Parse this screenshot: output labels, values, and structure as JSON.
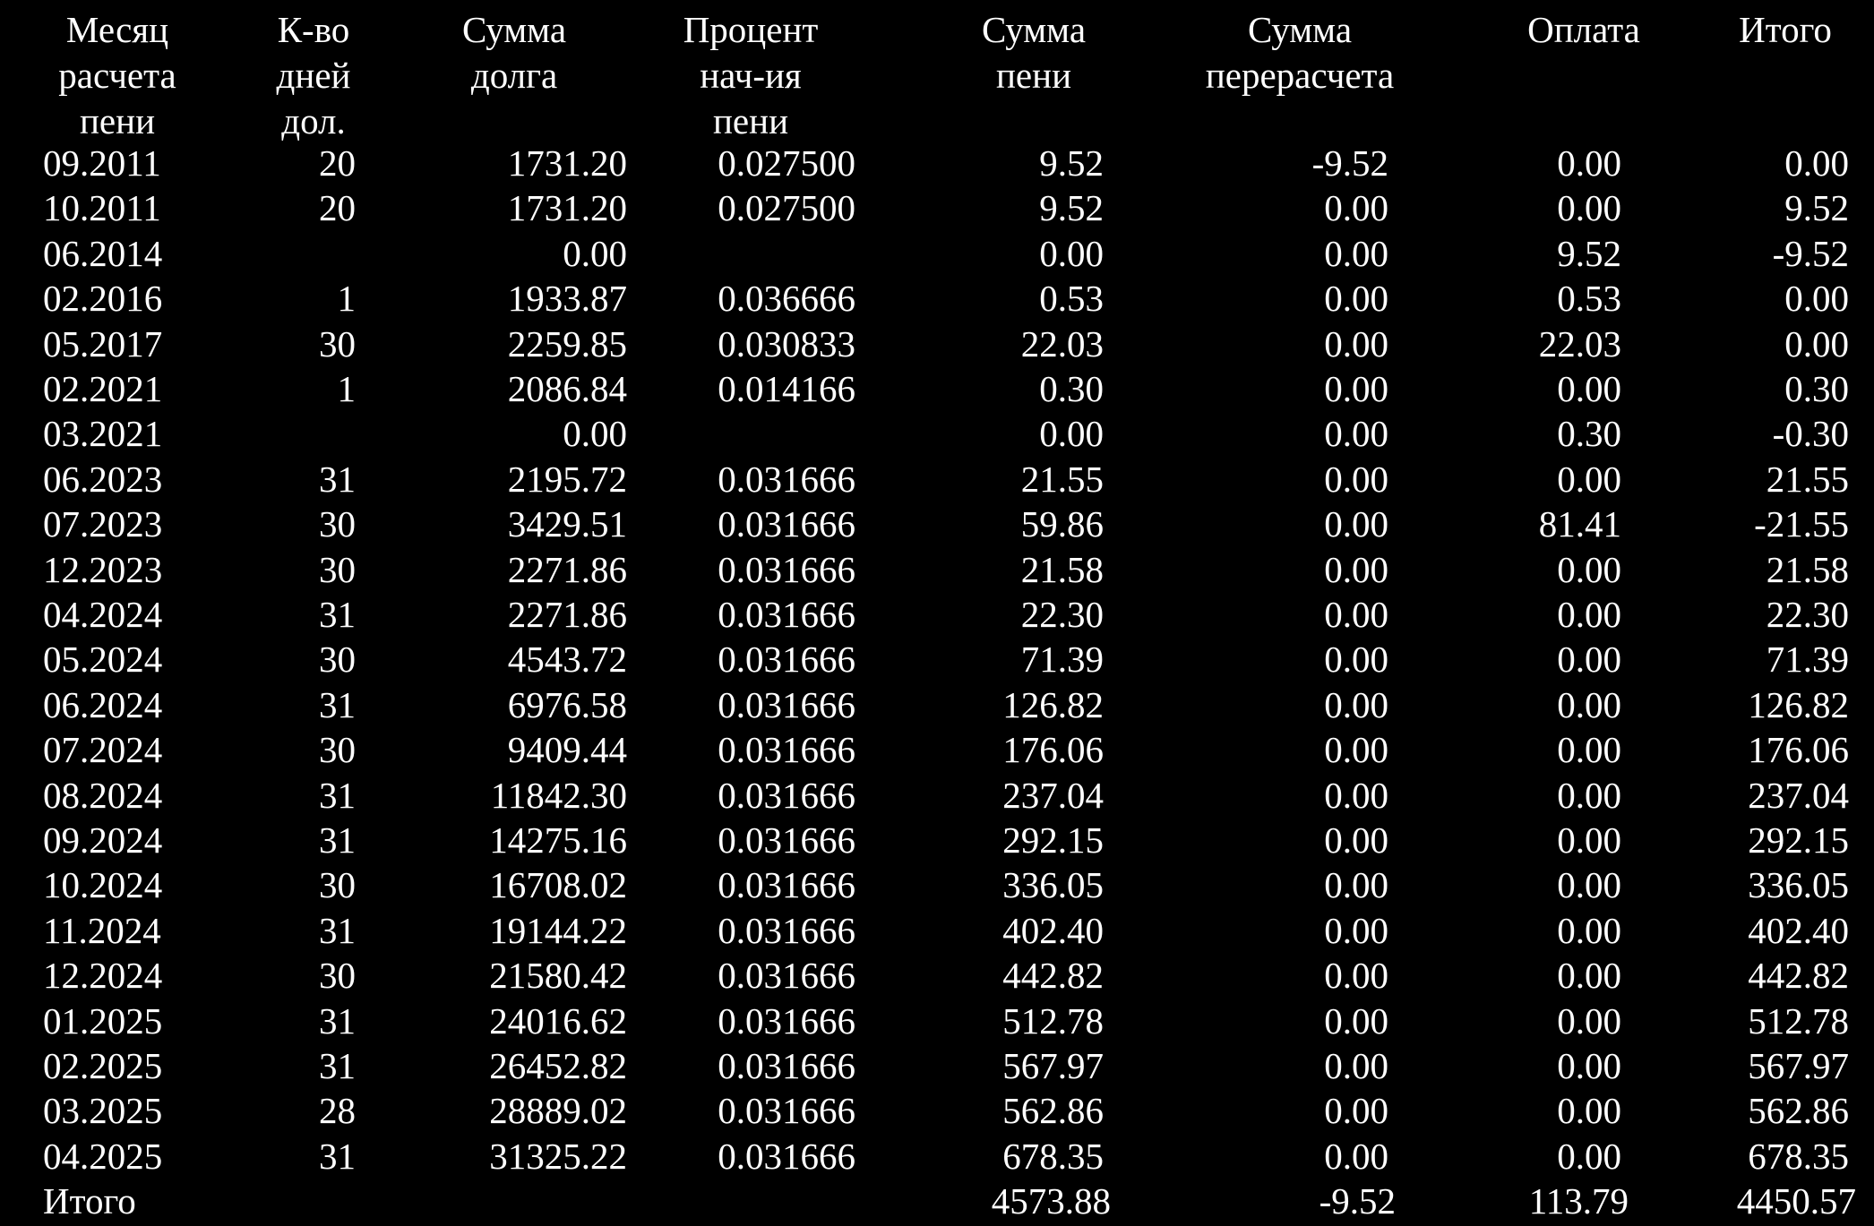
{
  "colors": {
    "background": "#000000",
    "text": "#ffffff"
  },
  "headers": [
    [
      "Месяц",
      "расчета",
      "пени"
    ],
    [
      "К-во",
      "дней",
      "дол."
    ],
    [
      "Сумма",
      "долга"
    ],
    [
      "Процент",
      "нач-ия",
      "пени"
    ],
    [
      "Сумма",
      "пени"
    ],
    [
      "Сумма",
      "перерасчета"
    ],
    [
      "Оплата"
    ],
    [
      "Итого"
    ]
  ],
  "rows": [
    [
      "09.2011",
      "20",
      "1731.20",
      "0.027500",
      "9.52",
      "-9.52",
      "0.00",
      "0.00"
    ],
    [
      "10.2011",
      "20",
      "1731.20",
      "0.027500",
      "9.52",
      "0.00",
      "0.00",
      "9.52"
    ],
    [
      "06.2014",
      "",
      "0.00",
      "",
      "0.00",
      "0.00",
      "9.52",
      "-9.52"
    ],
    [
      "02.2016",
      "1",
      "1933.87",
      "0.036666",
      "0.53",
      "0.00",
      "0.53",
      "0.00"
    ],
    [
      "05.2017",
      "30",
      "2259.85",
      "0.030833",
      "22.03",
      "0.00",
      "22.03",
      "0.00"
    ],
    [
      "02.2021",
      "1",
      "2086.84",
      "0.014166",
      "0.30",
      "0.00",
      "0.00",
      "0.30"
    ],
    [
      "03.2021",
      "",
      "0.00",
      "",
      "0.00",
      "0.00",
      "0.30",
      "-0.30"
    ],
    [
      "06.2023",
      "31",
      "2195.72",
      "0.031666",
      "21.55",
      "0.00",
      "0.00",
      "21.55"
    ],
    [
      "07.2023",
      "30",
      "3429.51",
      "0.031666",
      "59.86",
      "0.00",
      "81.41",
      "-21.55"
    ],
    [
      "12.2023",
      "30",
      "2271.86",
      "0.031666",
      "21.58",
      "0.00",
      "0.00",
      "21.58"
    ],
    [
      "04.2024",
      "31",
      "2271.86",
      "0.031666",
      "22.30",
      "0.00",
      "0.00",
      "22.30"
    ],
    [
      "05.2024",
      "30",
      "4543.72",
      "0.031666",
      "71.39",
      "0.00",
      "0.00",
      "71.39"
    ],
    [
      "06.2024",
      "31",
      "6976.58",
      "0.031666",
      "126.82",
      "0.00",
      "0.00",
      "126.82"
    ],
    [
      "07.2024",
      "30",
      "9409.44",
      "0.031666",
      "176.06",
      "0.00",
      "0.00",
      "176.06"
    ],
    [
      "08.2024",
      "31",
      "11842.30",
      "0.031666",
      "237.04",
      "0.00",
      "0.00",
      "237.04"
    ],
    [
      "09.2024",
      "31",
      "14275.16",
      "0.031666",
      "292.15",
      "0.00",
      "0.00",
      "292.15"
    ],
    [
      "10.2024",
      "30",
      "16708.02",
      "0.031666",
      "336.05",
      "0.00",
      "0.00",
      "336.05"
    ],
    [
      "11.2024",
      "31",
      "19144.22",
      "0.031666",
      "402.40",
      "0.00",
      "0.00",
      "402.40"
    ],
    [
      "12.2024",
      "30",
      "21580.42",
      "0.031666",
      "442.82",
      "0.00",
      "0.00",
      "442.82"
    ],
    [
      "01.2025",
      "31",
      "24016.62",
      "0.031666",
      "512.78",
      "0.00",
      "0.00",
      "512.78"
    ],
    [
      "02.2025",
      "31",
      "26452.82",
      "0.031666",
      "567.97",
      "0.00",
      "0.00",
      "567.97"
    ],
    [
      "03.2025",
      "28",
      "28889.02",
      "0.031666",
      "562.86",
      "0.00",
      "0.00",
      "562.86"
    ],
    [
      "04.2025",
      "31",
      "31325.22",
      "0.031666",
      "678.35",
      "0.00",
      "0.00",
      "678.35"
    ]
  ],
  "totals": [
    "Итого",
    "",
    "",
    "",
    "4573.88",
    "-9.52",
    "113.79",
    "4450.57"
  ]
}
